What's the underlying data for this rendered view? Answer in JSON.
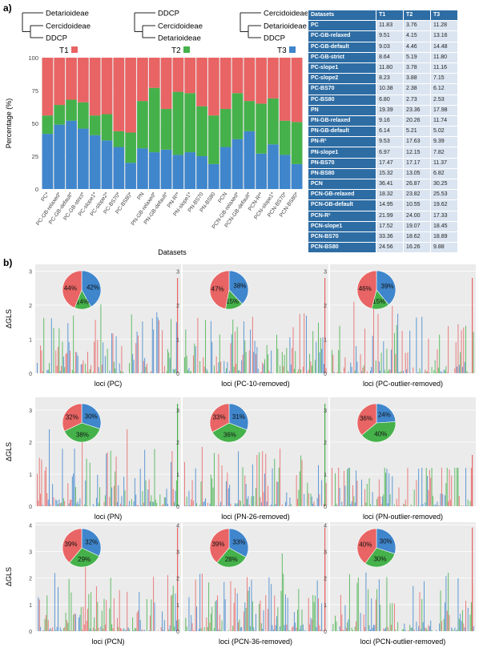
{
  "panel_labels": {
    "a": "a)",
    "b": "b)"
  },
  "trees": [
    {
      "taxa": [
        "Detarioideae",
        "Cercidoideae",
        "DDCP"
      ],
      "label": "T1",
      "color": "#e96464"
    },
    {
      "taxa": [
        "DDCP",
        "Cercidoideae",
        "Detarioideae"
      ],
      "label": "T2",
      "color": "#45b14a"
    },
    {
      "taxa": [
        "Cercidoideae",
        "Detarioideae",
        "DDCP"
      ],
      "label": "T3",
      "color": "#3f86cc"
    }
  ],
  "table": {
    "headers": [
      "Datasets",
      "T1",
      "T2",
      "T3"
    ],
    "rows": [
      [
        "PC",
        "11.83",
        "3.76",
        "11.28"
      ],
      [
        "PC-GB-relaxed",
        "9.51",
        "4.15",
        "13.16"
      ],
      [
        "PC-GB-default",
        "9.03",
        "4.46",
        "14.48"
      ],
      [
        "PC-GB-strict",
        "8.64",
        "5.19",
        "11.80"
      ],
      [
        "PC-slope1",
        "11.80",
        "3.78",
        "11.16"
      ],
      [
        "PC-slope2",
        "8.23",
        "3.88",
        "7.15"
      ],
      [
        "PC-BS70",
        "10.38",
        "2.38",
        "6.12"
      ],
      [
        "PC-BS80",
        "6.80",
        "2.73",
        "2.53"
      ],
      [
        "PN",
        "19.39",
        "23.36",
        "17.98"
      ],
      [
        "PN-GB-relaxed",
        "9.16",
        "20.26",
        "11.74"
      ],
      [
        "PN-GB-default",
        "6.14",
        "5.21",
        "5.02"
      ],
      [
        "PN-R²",
        "9.53",
        "17.63",
        "9.39"
      ],
      [
        "PN-slope1",
        "6.97",
        "12.15",
        "7.82"
      ],
      [
        "PN-BS70",
        "17.47",
        "17.17",
        "11.37"
      ],
      [
        "PN-BS80",
        "15.32",
        "13.05",
        "6.82"
      ],
      [
        "PCN",
        "36.41",
        "26.87",
        "30.25"
      ],
      [
        "PCN-GB-relaxed",
        "18.32",
        "23.82",
        "25.53"
      ],
      [
        "PCN-GB-default",
        "14.95",
        "10.55",
        "19.62"
      ],
      [
        "PCN-R²",
        "21.99",
        "24.00",
        "17.33"
      ],
      [
        "PCN-slope1",
        "17.52",
        "19.07",
        "18.45"
      ],
      [
        "PCN-BS70",
        "33.36",
        "18.62",
        "18.89"
      ],
      [
        "PCN-BS80",
        "24.56",
        "16.26",
        "9.88"
      ]
    ]
  },
  "colors": {
    "T1": "#e96464",
    "T2": "#45b14a",
    "T3": "#3f86cc",
    "panel_bg": "#ebebeb"
  },
  "chart_data": [
    {
      "type": "bar",
      "stacked": true,
      "xlabel": "Datasets",
      "ylabel": "Percentage (%)",
      "ylim": [
        0,
        100
      ],
      "yticks": [
        0,
        25,
        50,
        75,
        100
      ],
      "categories": [
        "PC*",
        "PC-GB-relaxed*",
        "PC-GB-default*",
        "PC-GB-strict*",
        "PC-slope1*",
        "PC-slope2*",
        "PC-BS70*",
        "PC-BS80*",
        "PN",
        "PN-GB-relaxed*",
        "PN-GB-default*",
        "PN-R²*",
        "PN-slope1*",
        "PN-BS70",
        "PN-BS80",
        "PCN",
        "PCN-GB-relaxed*",
        "PCN-GB-default*",
        "PCN-R²*",
        "PCN-slope1*",
        "PCN-BS70*",
        "PCN-BS80*"
      ],
      "series": [
        {
          "name": "T3",
          "values": [
            42,
            49,
            52,
            46,
            41,
            37,
            32,
            20,
            31,
            28,
            30,
            26,
            28,
            25,
            19,
            32,
            38,
            44,
            27,
            34,
            26,
            19
          ]
        },
        {
          "name": "T2",
          "values": [
            14,
            15,
            16,
            20,
            15,
            20,
            12,
            23,
            36,
            49,
            31,
            48,
            45,
            38,
            37,
            29,
            35,
            23,
            38,
            35,
            26,
            32
          ]
        },
        {
          "name": "T1",
          "values": [
            44,
            36,
            32,
            34,
            44,
            43,
            56,
            57,
            33,
            23,
            39,
            26,
            27,
            37,
            44,
            39,
            27,
            33,
            35,
            31,
            48,
            49
          ]
        }
      ]
    },
    {
      "type": "bar",
      "panels": [
        {
          "xlabel": "loci (PC)",
          "ylabel": "ΔGLS",
          "ylim": [
            0,
            3.2
          ],
          "yticks": [
            0,
            1,
            2,
            3
          ],
          "pie": {
            "T1": 44,
            "T2": 14,
            "T3": 42
          },
          "max_value": 2.8,
          "max_series": "T1"
        },
        {
          "xlabel": "loci (PC-10-removed)",
          "ylim": [
            0,
            3.2
          ],
          "pie": {
            "T1": 47,
            "T2": 15,
            "T3": 38
          },
          "max_value": 2.8,
          "max_series": "T1"
        },
        {
          "xlabel": "loci (PC-outlier-removed)",
          "ylim": [
            0,
            3.2
          ],
          "pie": {
            "T1": 46,
            "T2": 15,
            "T3": 39
          },
          "max_value": 2.8,
          "max_series": "T1"
        },
        {
          "xlabel": "loci (PN)",
          "ylabel": "ΔGLS",
          "ylim": [
            0,
            3.4
          ],
          "yticks": [
            0,
            1,
            2,
            3
          ],
          "pie": {
            "T1": 32,
            "T2": 38,
            "T3": 30
          },
          "max_value": 3.2,
          "max_series": "T2"
        },
        {
          "xlabel": "loci (PN-26-removed)",
          "ylim": [
            0,
            3.4
          ],
          "pie": {
            "T1": 33,
            "T2": 36,
            "T3": 31
          },
          "max_value": 3.2,
          "max_series": "T2"
        },
        {
          "xlabel": "loci (PN-outlier-removed)",
          "ylim": [
            0,
            3.4
          ],
          "pie": {
            "T1": 36,
            "T2": 40,
            "T3": 24
          },
          "max_value": 1.6,
          "max_series": "T1"
        },
        {
          "xlabel": "loci (PCN)",
          "ylabel": "ΔGLS",
          "ylim": [
            0,
            4.1
          ],
          "yticks": [
            0,
            1,
            2,
            3,
            4
          ],
          "pie": {
            "T1": 39,
            "T2": 29,
            "T3": 32
          },
          "max_value": 3.9,
          "max_series": "T1"
        },
        {
          "xlabel": "loci (PCN-36-removed)",
          "ylim": [
            0,
            4.1
          ],
          "pie": {
            "T1": 39,
            "T2": 28,
            "T3": 33
          },
          "max_value": 3.9,
          "max_series": "T1"
        },
        {
          "xlabel": "loci (PCN-outlier-removed)",
          "ylim": [
            0,
            4.1
          ],
          "pie": {
            "T1": 40,
            "T2": 30,
            "T3": 30
          },
          "max_value": 3.9,
          "max_series": "T1"
        }
      ]
    }
  ]
}
